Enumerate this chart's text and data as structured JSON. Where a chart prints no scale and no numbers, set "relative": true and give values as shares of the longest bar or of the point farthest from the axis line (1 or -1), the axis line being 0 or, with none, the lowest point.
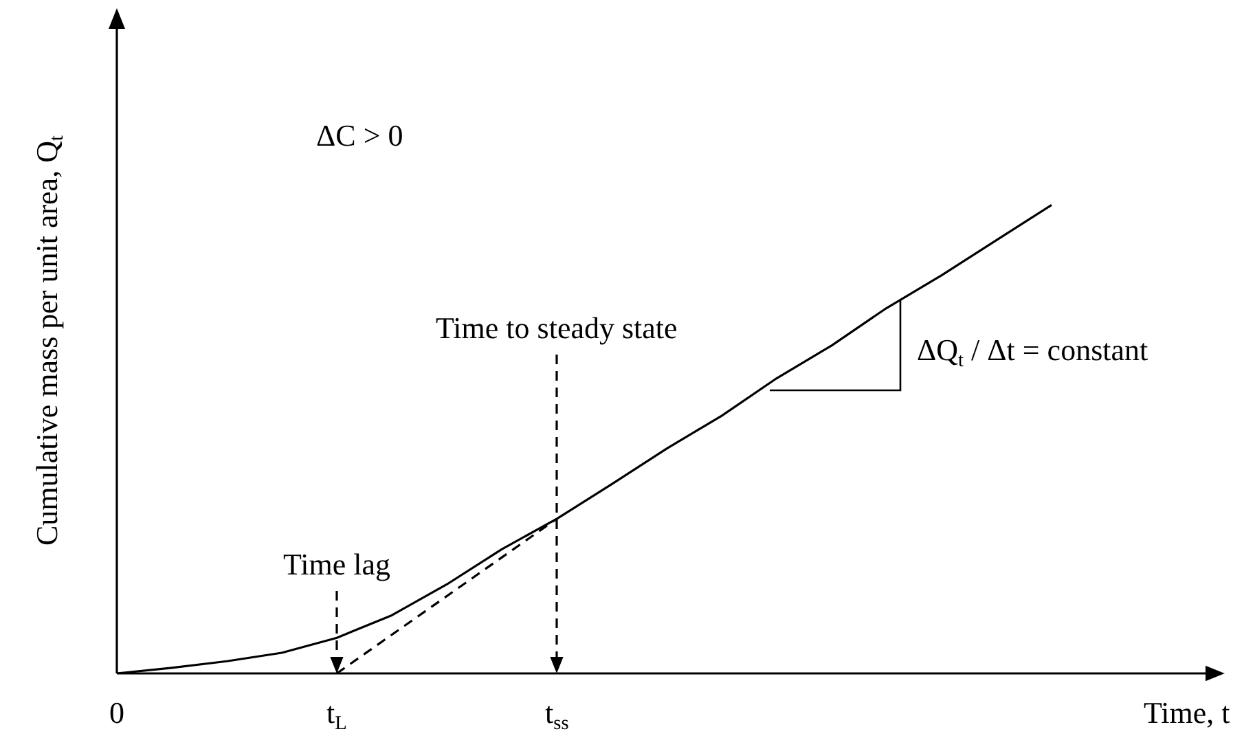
{
  "chart_data": {
    "type": "line",
    "relative": true,
    "ylabel": "Cumulative mass per unit area, Q$_{t}$",
    "xlabel": "Time, t",
    "categories": [
      "0",
      null,
      null,
      null,
      "t$_{L}$",
      null,
      null,
      null,
      "t$_{ss}$",
      null,
      null,
      null,
      null,
      null,
      null,
      null,
      null,
      null,
      null,
      null,
      null
    ],
    "series": [
      {
        "color": "#000000",
        "values": [
          0,
          0.012,
          0.026,
          0.044,
          0.076,
          0.124,
          0.19,
          0.265,
          0.33,
          0.404,
          0.48,
          0.55,
          0.63,
          0.7,
          0.78,
          0.85,
          0.925,
          1,
          null,
          null,
          null
        ]
      },
      {
        "color": "#000000",
        "line_style": "dashed",
        "values": [
          null,
          null,
          null,
          null,
          0,
          null,
          null,
          null,
          0.33,
          null,
          null,
          null,
          null,
          null,
          null,
          null,
          null,
          null,
          null,
          null,
          null
        ]
      }
    ],
    "annotations": [
      "ΔC > 0",
      "Time lag",
      "Time to steady state",
      "ΔQ$_{t}$ / Δt = constant"
    ],
    "legend": false,
    "marker": "none",
    "line_style": "solid"
  }
}
